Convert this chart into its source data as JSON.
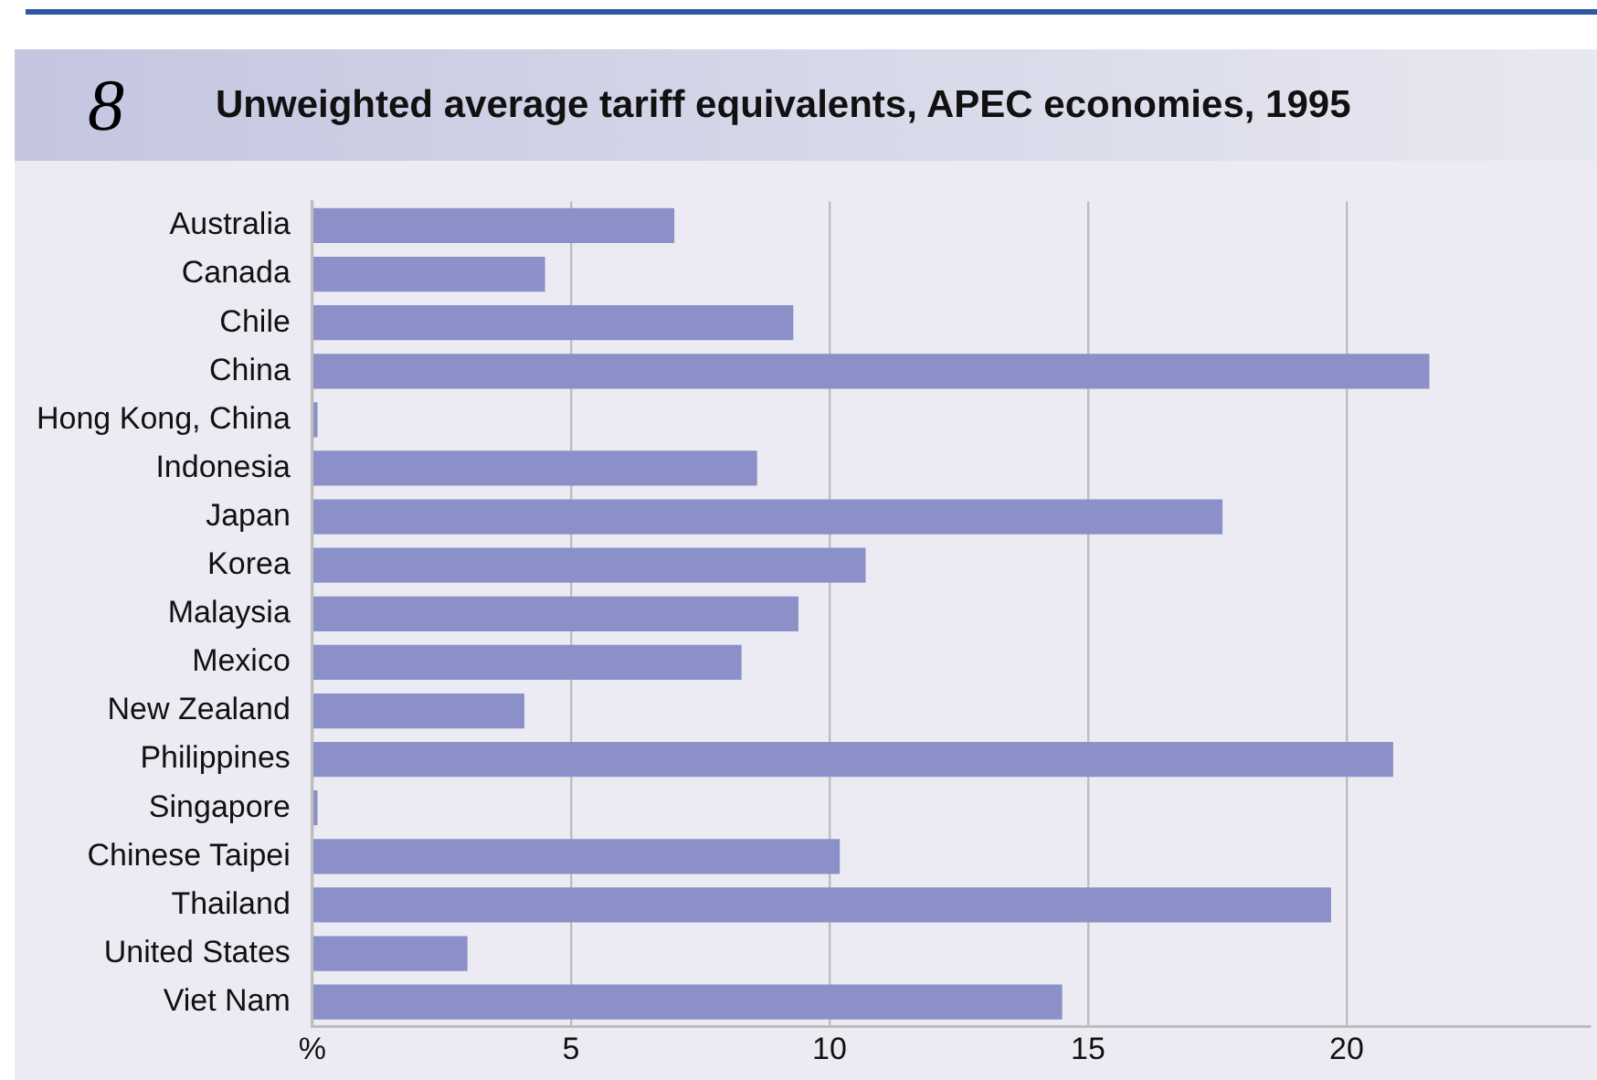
{
  "chart_data": {
    "type": "bar",
    "orientation": "horizontal",
    "title": "Unweighted average tariff equivalents, APEC economies, 1995",
    "annotations": [
      "8"
    ],
    "categories": [
      "Australia",
      "Canada",
      "Chile",
      "China",
      "Hong Kong, China",
      "Indonesia",
      "Japan",
      "Korea",
      "Malaysia",
      "Mexico",
      "New Zealand",
      "Philippines",
      "Singapore",
      "Chinese Taipei",
      "Thailand",
      "United States",
      "Viet Nam"
    ],
    "values": [
      7.0,
      4.5,
      9.3,
      21.6,
      0.1,
      8.6,
      17.6,
      10.7,
      9.4,
      8.3,
      4.1,
      20.9,
      0.1,
      10.2,
      19.7,
      3.0,
      14.5
    ],
    "color": "#8b90c8",
    "xlim": [
      0,
      24.7
    ],
    "xticks": [
      {
        "value": 0,
        "label": "%"
      },
      5,
      10,
      15,
      20
    ],
    "grid": "x",
    "legend": false
  }
}
